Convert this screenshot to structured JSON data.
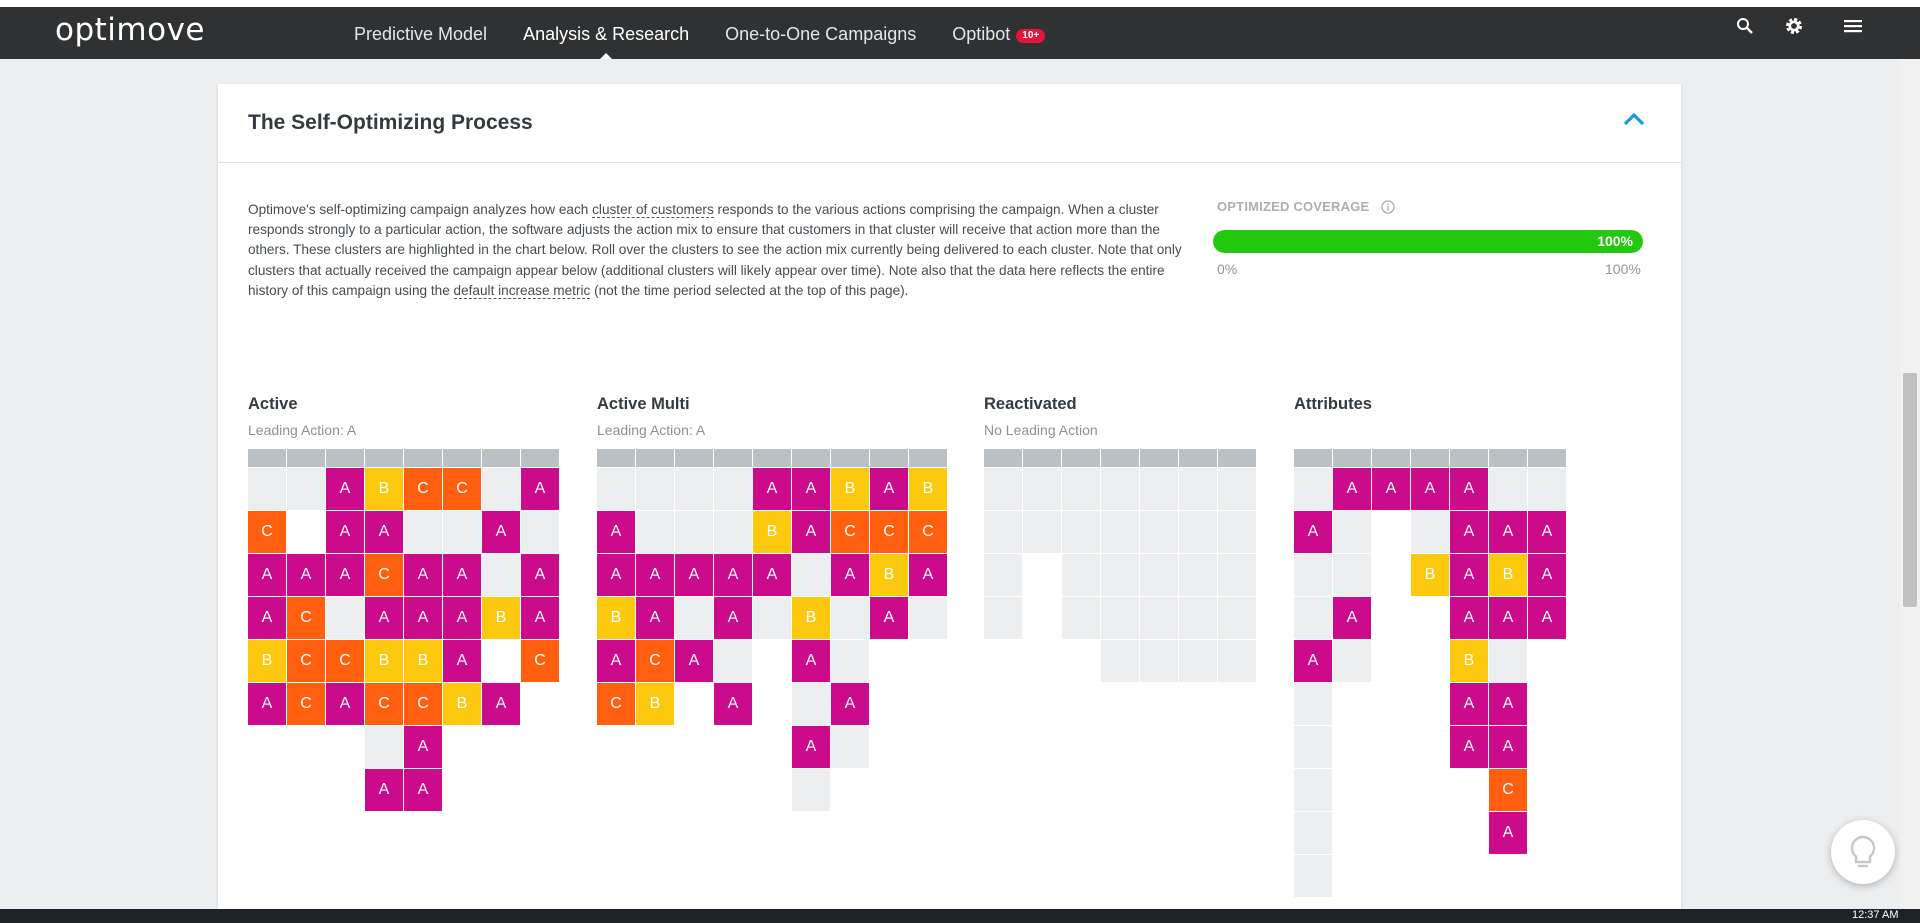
{
  "app": {
    "logo": "optimove"
  },
  "nav": {
    "items": [
      {
        "label": "Predictive Model",
        "active": false
      },
      {
        "label": "Analysis & Research",
        "active": true
      },
      {
        "label": "One-to-One Campaigns",
        "active": false
      },
      {
        "label": "Optibot",
        "active": false,
        "badge": "10+"
      }
    ],
    "icons": [
      "search-icon",
      "gear-icon",
      "menu-icon"
    ]
  },
  "card": {
    "title": "The Self-Optimizing Process",
    "description": {
      "part1": "Optimove's self-optimizing campaign analyzes how each ",
      "link1": "cluster of customers",
      "part2": " responds to the various actions comprising the campaign. When a cluster responds strongly to a particular action, the software adjusts the action mix to ensure that customers in that cluster will receive that action more than the others. These clusters are highlighted in the chart below. Roll over the clusters to see the action mix currently being delivered to each cluster. Note that only clusters that actually received the campaign appear below (additional clusters will likely appear over time). Note also that the data here reflects the entire history of this campaign using the ",
      "link2": "default increase metric",
      "part3": " (not the time period selected at the top of this page)."
    }
  },
  "coverage": {
    "label": "OPTIMIZED COVERAGE",
    "value_text": "100%",
    "fraction": 1.0,
    "min_label": "0%",
    "max_label": "100%"
  },
  "colors": {
    "A": "#cc0a8c",
    "B": "#fcc90f",
    "C": "#ff5f0f",
    "empty": "#eceef0",
    "header": "#bac1c5",
    "coverage": "#22c90f",
    "accent": "#1a9be0"
  },
  "clusters": [
    {
      "name": "Active",
      "leading": "Leading Action: A",
      "grid": [
        [
          "",
          "",
          "A",
          "B",
          "C",
          "C",
          "",
          "A"
        ],
        [
          "C",
          null,
          "A",
          "A",
          "",
          "",
          "A",
          ""
        ],
        [
          "A",
          "A",
          "A",
          "C",
          "A",
          "A",
          "",
          "A"
        ],
        [
          "A",
          "C",
          "",
          "A",
          "A",
          "A",
          "B",
          "A"
        ],
        [
          "B",
          "C",
          "C",
          "B",
          "B",
          "A",
          null,
          "C"
        ],
        [
          "A",
          "C",
          "A",
          "C",
          "C",
          "B",
          "A",
          null
        ],
        [
          null,
          null,
          null,
          "",
          "A",
          null,
          null,
          null
        ],
        [
          null,
          null,
          null,
          "A",
          "A",
          null,
          null,
          null
        ]
      ]
    },
    {
      "name": "Active Multi",
      "leading": "Leading Action: A",
      "grid": [
        [
          "",
          "",
          "",
          "",
          "A",
          "A",
          "B",
          "A",
          "B"
        ],
        [
          "A",
          "",
          "",
          "",
          "B",
          "A",
          "C",
          "C",
          "C"
        ],
        [
          "A",
          "A",
          "A",
          "A",
          "A",
          "",
          "A",
          "B",
          "A"
        ],
        [
          "B",
          "A",
          "",
          "A",
          "",
          "B",
          "",
          "A",
          ""
        ],
        [
          "A",
          "C",
          "A",
          "",
          null,
          "A",
          "",
          null,
          null
        ],
        [
          "C",
          "B",
          null,
          "A",
          null,
          "",
          "A",
          null,
          null
        ],
        [
          null,
          null,
          null,
          null,
          null,
          "A",
          "",
          null,
          null
        ],
        [
          null,
          null,
          null,
          null,
          null,
          "",
          null,
          null,
          null
        ]
      ]
    },
    {
      "name": "Reactivated",
      "leading": "No Leading Action",
      "grid": [
        [
          "",
          "",
          "",
          "",
          "",
          "",
          ""
        ],
        [
          "",
          "",
          "",
          "",
          "",
          "",
          ""
        ],
        [
          "",
          null,
          "",
          "",
          "",
          "",
          ""
        ],
        [
          "",
          null,
          "",
          "",
          "",
          "",
          ""
        ],
        [
          null,
          null,
          null,
          "",
          "",
          "",
          ""
        ]
      ]
    },
    {
      "name": "Attributes",
      "leading": "",
      "grid": [
        [
          "",
          "A",
          "A",
          "A",
          "A",
          "",
          ""
        ],
        [
          "A",
          "",
          null,
          "",
          "A",
          "A",
          "A"
        ],
        [
          "",
          "",
          null,
          "B",
          "A",
          "B",
          "A"
        ],
        [
          "",
          "A",
          null,
          null,
          "A",
          "A",
          "A"
        ],
        [
          "A",
          "",
          null,
          null,
          "B",
          "",
          null
        ],
        [
          "",
          null,
          null,
          null,
          "A",
          "A",
          null
        ],
        [
          "",
          null,
          null,
          null,
          "A",
          "A",
          null
        ],
        [
          "",
          null,
          null,
          null,
          null,
          "C",
          null
        ],
        [
          "",
          null,
          null,
          null,
          null,
          "A",
          null
        ],
        [
          "",
          null,
          null,
          null,
          null,
          null,
          null
        ]
      ]
    }
  ],
  "taskbar": {
    "time": "12:37 AM"
  }
}
